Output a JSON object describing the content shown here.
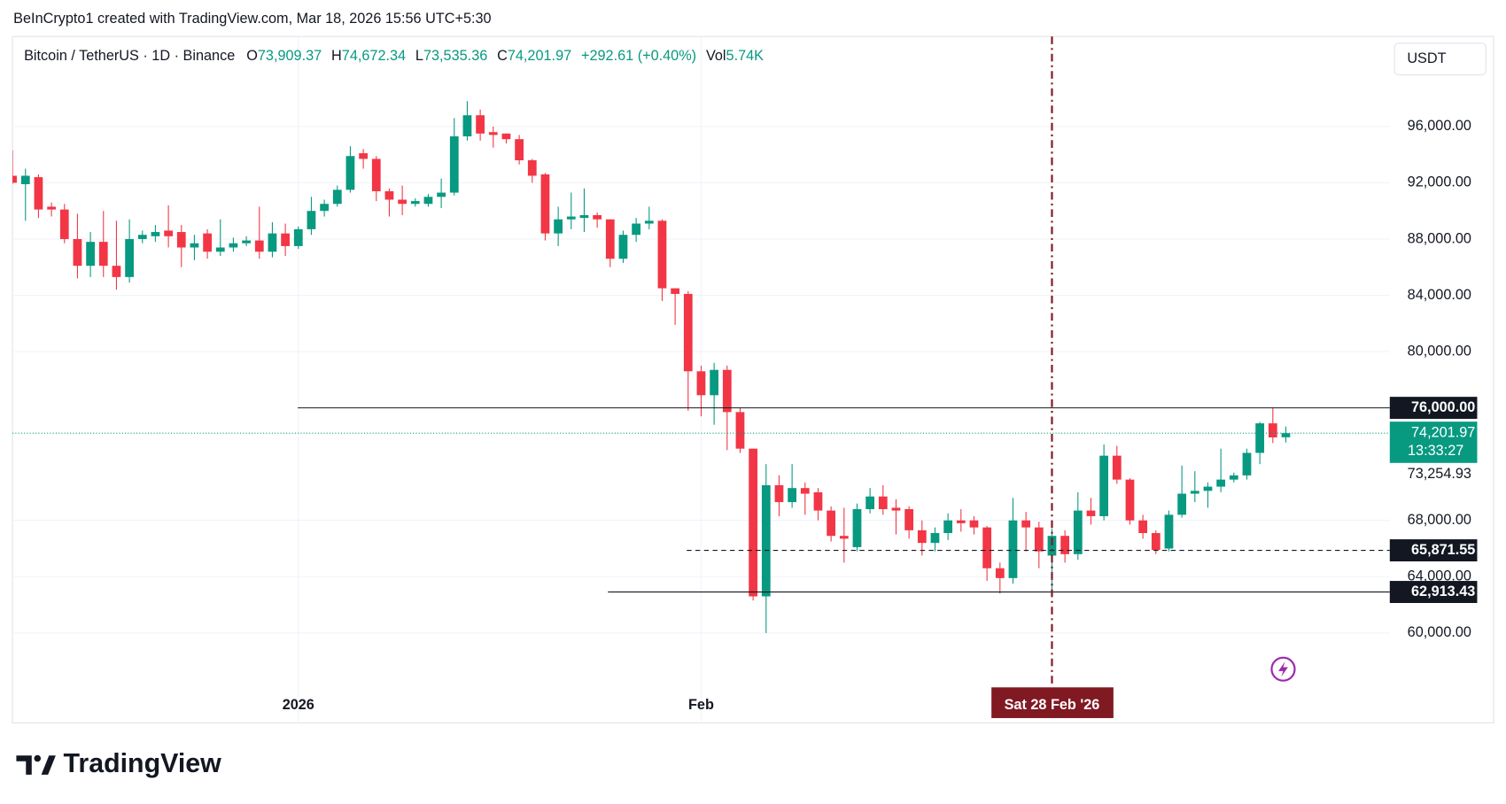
{
  "chart_data": {
    "type": "candlestick",
    "attribution": "BeInCrypto1 created with TradingView.com, Mar 18, 2026 15:56 UTC+5:30",
    "symbol": "Bitcoin / TetherUS · 1D · Binance",
    "ohlc_header": [
      {
        "key": "O",
        "value": "73,909.37"
      },
      {
        "key": "H",
        "value": "74,672.34"
      },
      {
        "key": "L",
        "value": "73,535.36"
      },
      {
        "key": "C",
        "value": "74,201.97"
      }
    ],
    "change": "+292.61 (+0.40%)",
    "volume": {
      "key": "Vol",
      "value": "5.74K"
    },
    "currency": "USDT",
    "logo": "TradingView",
    "up_color": "#089981",
    "down_color": "#f23645",
    "x": [
      "2025-12-10",
      "2025-12-11",
      "2025-12-12",
      "2025-12-13",
      "2025-12-14",
      "2025-12-15",
      "2025-12-16",
      "2025-12-17",
      "2025-12-18",
      "2025-12-19",
      "2025-12-20",
      "2025-12-21",
      "2025-12-22",
      "2025-12-23",
      "2025-12-24",
      "2025-12-25",
      "2025-12-26",
      "2025-12-27",
      "2025-12-28",
      "2025-12-29",
      "2025-12-30",
      "2025-12-31",
      "2026-01-01",
      "2026-01-02",
      "2026-01-03",
      "2026-01-04",
      "2026-01-05",
      "2026-01-06",
      "2026-01-07",
      "2026-01-08",
      "2026-01-09",
      "2026-01-10",
      "2026-01-11",
      "2026-01-12",
      "2026-01-13",
      "2026-01-14",
      "2026-01-15",
      "2026-01-16",
      "2026-01-17",
      "2026-01-18",
      "2026-01-19",
      "2026-01-20",
      "2026-01-21",
      "2026-01-22",
      "2026-01-23",
      "2026-01-24",
      "2026-01-25",
      "2026-01-26",
      "2026-01-27",
      "2026-01-28",
      "2026-01-29",
      "2026-01-30",
      "2026-01-31",
      "2026-02-01",
      "2026-02-02",
      "2026-02-03",
      "2026-02-04",
      "2026-02-05",
      "2026-02-06",
      "2026-02-07",
      "2026-02-08",
      "2026-02-09",
      "2026-02-10",
      "2026-02-11",
      "2026-02-12",
      "2026-02-13",
      "2026-02-14",
      "2026-02-15",
      "2026-02-16",
      "2026-02-17",
      "2026-02-18",
      "2026-02-19",
      "2026-02-20",
      "2026-02-21",
      "2026-02-22",
      "2026-02-23",
      "2026-02-24",
      "2026-02-25",
      "2026-02-26",
      "2026-02-27",
      "2026-02-28",
      "2026-03-01",
      "2026-03-02",
      "2026-03-03",
      "2026-03-04",
      "2026-03-05",
      "2026-03-06",
      "2026-03-07",
      "2026-03-08",
      "2026-03-09",
      "2026-03-10",
      "2026-03-11",
      "2026-03-12",
      "2026-03-13",
      "2026-03-14",
      "2026-03-15",
      "2026-03-16",
      "2026-03-17",
      "2026-03-18"
    ],
    "open": [
      92500,
      91900,
      92400,
      90300,
      90100,
      88000,
      86100,
      87800,
      86100,
      85300,
      88000,
      88200,
      88600,
      88500,
      87400,
      88400,
      87100,
      87400,
      87700,
      87900,
      87100,
      88400,
      87500,
      88700,
      90000,
      90500,
      91500,
      94100,
      93700,
      91400,
      90800,
      90500,
      90500,
      91000,
      91300,
      95300,
      96800,
      95600,
      95500,
      95100,
      93600,
      92600,
      88400,
      89400,
      89500,
      89700,
      89400,
      86600,
      88300,
      89100,
      89300,
      84500,
      84100,
      78600,
      76900,
      78700,
      75700,
      73100,
      62600,
      70500,
      69300,
      70300,
      70000,
      68700,
      66900,
      66100,
      68800,
      69700,
      68900,
      68800,
      67300,
      66400,
      67100,
      68000,
      68000,
      67500,
      64600,
      63900,
      68000,
      67500,
      65500,
      66900,
      65600,
      68700,
      68300,
      72600,
      70900,
      68000,
      67100,
      66000,
      68400,
      69900,
      70100,
      70400,
      70900,
      71200,
      72800,
      74900,
      73909.37
    ],
    "high": [
      94300,
      93000,
      92600,
      90600,
      90500,
      89800,
      88500,
      90000,
      89300,
      89400,
      88600,
      89000,
      90400,
      89000,
      88300,
      88700,
      89400,
      88100,
      88200,
      90300,
      89200,
      89100,
      88900,
      91000,
      90800,
      91800,
      94600,
      94400,
      93900,
      91600,
      91800,
      90900,
      91200,
      92300,
      96600,
      97800,
      97200,
      96000,
      95500,
      95400,
      93700,
      92700,
      90300,
      91300,
      91600,
      89900,
      89400,
      88600,
      89500,
      90300,
      89400,
      84500,
      84300,
      79000,
      79200,
      79000,
      76000,
      73100,
      72000,
      71200,
      72000,
      70700,
      70300,
      69000,
      68900,
      69200,
      70300,
      70500,
      69500,
      69000,
      68000,
      67500,
      68500,
      68800,
      68300,
      67600,
      65000,
      69600,
      68600,
      67900,
      67400,
      67300,
      70000,
      69600,
      73400,
      73300,
      71000,
      68400,
      67300,
      68700,
      71900,
      71500,
      70700,
      73100,
      71400,
      73100,
      75000,
      76000,
      74672.34
    ],
    "low": [
      91900,
      89300,
      89500,
      89600,
      87700,
      85200,
      85300,
      85300,
      84400,
      84900,
      87700,
      87800,
      87400,
      86000,
      86500,
      86600,
      86800,
      87100,
      87500,
      86600,
      86700,
      86800,
      87300,
      88300,
      89600,
      90300,
      91300,
      93000,
      90700,
      89600,
      89700,
      90300,
      90300,
      90200,
      91100,
      95000,
      95000,
      94500,
      94800,
      93300,
      92000,
      87900,
      87500,
      88700,
      88500,
      88800,
      86000,
      86300,
      87800,
      88700,
      83600,
      81900,
      75800,
      75400,
      74800,
      73000,
      72800,
      62300,
      60000,
      68300,
      68900,
      68400,
      68000,
      66500,
      65000,
      65800,
      68500,
      68400,
      67000,
      66700,
      65500,
      65800,
      66600,
      67200,
      67000,
      63700,
      62800,
      63500,
      65800,
      64600,
      62900,
      65000,
      65200,
      67700,
      68000,
      70600,
      67700,
      66700,
      65600,
      65800,
      68200,
      69300,
      68900,
      70000,
      70700,
      70900,
      72000,
      73500,
      73535.36
    ],
    "close": [
      92000,
      92500,
      90100,
      90100,
      88000,
      86100,
      87800,
      86100,
      85300,
      88000,
      88300,
      88500,
      88200,
      87400,
      87700,
      87100,
      87400,
      87700,
      87900,
      87100,
      88400,
      87500,
      88700,
      90000,
      90500,
      91500,
      93900,
      93700,
      91400,
      90800,
      90500,
      90700,
      91000,
      91300,
      95300,
      96800,
      95500,
      95400,
      95100,
      93600,
      92500,
      88400,
      89400,
      89600,
      89700,
      89400,
      86600,
      88300,
      89100,
      89300,
      84500,
      84100,
      78600,
      76900,
      78700,
      75700,
      73100,
      62600,
      70500,
      69300,
      70300,
      69900,
      68700,
      66900,
      66700,
      68800,
      69700,
      68800,
      68700,
      67300,
      66400,
      67100,
      68000,
      67800,
      67500,
      64600,
      63900,
      68000,
      67500,
      65800,
      66900,
      65600,
      68700,
      68300,
      72600,
      70900,
      68000,
      67100,
      65900,
      68400,
      69900,
      70100,
      70400,
      70900,
      71200,
      72800,
      74900,
      73900,
      74201.97
    ],
    "xlim": [
      "2025-12-10",
      "2026-03-26"
    ],
    "xticks": [
      {
        "value": "2026-01-01",
        "label": "2026"
      },
      {
        "value": "2026-02-01",
        "label": "Feb"
      }
    ],
    "ylim": [
      56200,
      102400
    ],
    "yticks": [
      {
        "value": 60000,
        "label": "60,000.00"
      },
      {
        "value": 64000,
        "label": "64,000.00"
      },
      {
        "value": 68000,
        "label": "68,000.00"
      },
      {
        "value": 80000,
        "label": "80,000.00"
      },
      {
        "value": 84000,
        "label": "84,000.00"
      },
      {
        "value": 88000,
        "label": "88,000.00"
      },
      {
        "value": 92000,
        "label": "92,000.00"
      },
      {
        "value": 96000,
        "label": "96,000.00"
      }
    ],
    "grid": true,
    "hlines": [
      {
        "value": 76000,
        "label": "76,000.00",
        "style": "solid"
      },
      {
        "value": 65871.55,
        "label": "65,871.55",
        "style": "dashed"
      },
      {
        "value": 62913.43,
        "label": "62,913.43",
        "style": "solid"
      }
    ],
    "last_price": {
      "value": 74201.97,
      "label": "74,201.97",
      "countdown": "13:33:27"
    },
    "extra_axis_label": "73,254.93",
    "crosshair": {
      "x": "2026-02-28",
      "label": "Sat 28 Feb '26"
    }
  }
}
